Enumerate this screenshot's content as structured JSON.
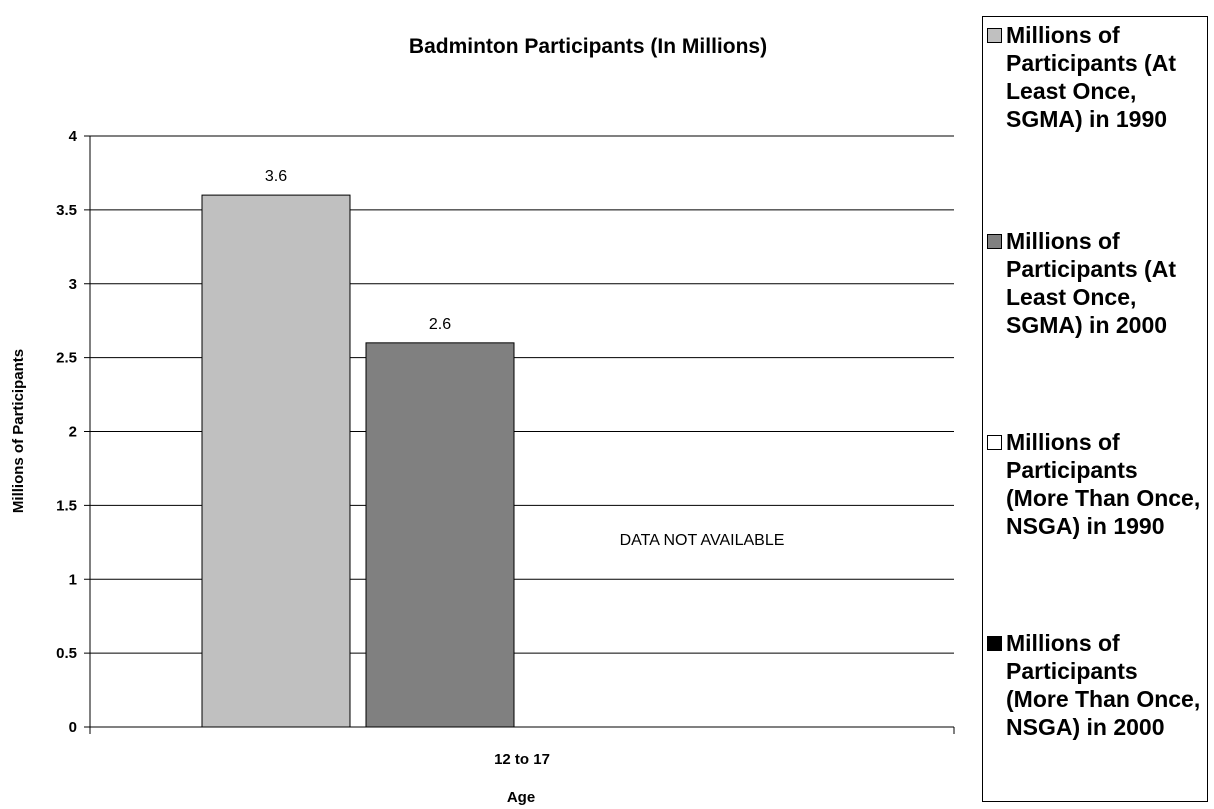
{
  "chart_data": {
    "type": "bar",
    "title": "Badminton Participants (In Millions)",
    "xlabel": "Age",
    "ylabel": "Millions of Participants",
    "categories": [
      "12 to 17"
    ],
    "ylim": [
      0,
      4
    ],
    "yticks": [
      "0",
      "0.5",
      "1",
      "1.5",
      "2",
      "2.5",
      "3",
      "3.5",
      "4"
    ],
    "grid": true,
    "legend_position": "right",
    "annotation": "DATA NOT AVAILABLE",
    "series": [
      {
        "name": "Millions of Participants (At Least Once, SGMA) in 1990",
        "values": [
          3.6
        ],
        "labels": [
          "3.6"
        ],
        "color": "#c0c0c0"
      },
      {
        "name": "Millions of Participants (At Least Once, SGMA) in 2000",
        "values": [
          2.6
        ],
        "labels": [
          "2.6"
        ],
        "color": "#808080"
      },
      {
        "name": "Millions of Participants (More Than Once, NSGA) in 1990",
        "values": [
          null
        ],
        "labels": [
          ""
        ],
        "color": "#ffffff"
      },
      {
        "name": "Millions of Participants (More Than Once, NSGA) in 2000",
        "values": [
          null
        ],
        "labels": [
          ""
        ],
        "color": "#000000"
      }
    ]
  }
}
